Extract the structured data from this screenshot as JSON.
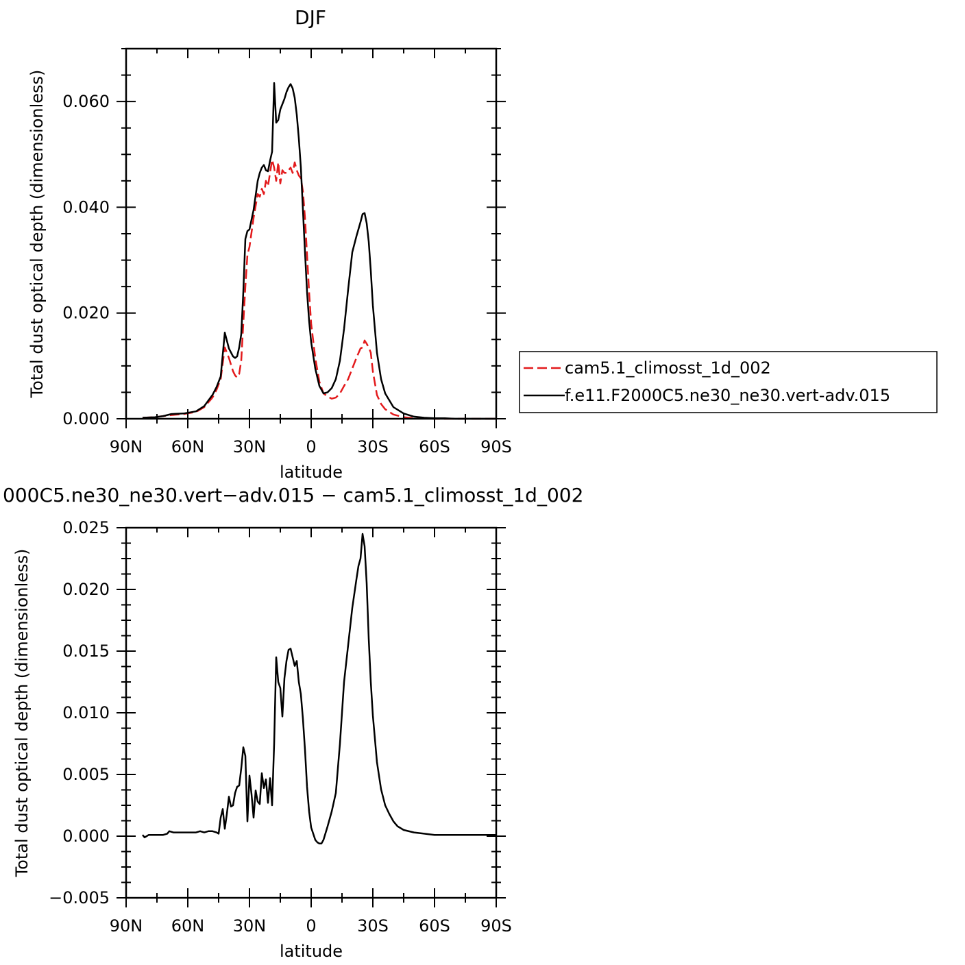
{
  "chart_data": [
    {
      "type": "line",
      "title": "DJF",
      "xlabel": "latitude",
      "ylabel": "Total dust optical depth (dimensionless)",
      "xlim": [
        90,
        -90
      ],
      "ylim": [
        0,
        0.07
      ],
      "xticks": [
        90,
        60,
        30,
        0,
        -30,
        -60,
        -90
      ],
      "xtick_labels": [
        "90N",
        "60N",
        "30N",
        "0",
        "30S",
        "60S",
        "90S"
      ],
      "yticks": [
        0,
        0.02,
        0.04,
        0.06
      ],
      "ytick_labels": [
        "0.000",
        "0.020",
        "0.040",
        "0.060"
      ],
      "grid": false,
      "legend": "right",
      "series": [
        {
          "name": "cam5.1_climosst_1d_002",
          "color": "#e31a1c",
          "dash": true,
          "x": [
            82,
            76,
            72,
            68,
            62,
            56,
            52,
            48,
            46,
            44,
            42,
            40,
            38,
            37,
            36,
            35,
            34,
            33,
            32,
            31,
            30,
            28,
            26,
            25,
            24,
            23,
            22,
            21,
            20,
            19,
            18,
            17,
            16,
            15,
            14,
            13,
            12,
            11,
            10,
            9,
            8,
            7,
            6,
            5,
            4,
            3,
            2,
            1,
            0,
            -2,
            -4,
            -6,
            -8,
            -10,
            -12,
            -14,
            -16,
            -18,
            -20,
            -22,
            -24,
            -25,
            -26,
            -27,
            -28,
            -29,
            -30,
            -32,
            -34,
            -36,
            -40,
            -45,
            -50,
            -55,
            -60,
            -65,
            -70,
            -75,
            -80,
            -85,
            -90
          ],
          "y": [
            0.0002,
            0.0003,
            0.0005,
            0.0007,
            0.0009,
            0.0013,
            0.0022,
            0.004,
            0.0055,
            0.0075,
            0.0135,
            0.0115,
            0.009,
            0.0082,
            0.0078,
            0.0085,
            0.011,
            0.018,
            0.025,
            0.031,
            0.0325,
            0.038,
            0.0425,
            0.042,
            0.0435,
            0.0425,
            0.045,
            0.044,
            0.0465,
            0.049,
            0.0475,
            0.045,
            0.0485,
            0.0445,
            0.047,
            0.0465,
            0.0465,
            0.047,
            0.0475,
            0.0465,
            0.0485,
            0.047,
            0.046,
            0.0455,
            0.043,
            0.038,
            0.031,
            0.024,
            0.018,
            0.0115,
            0.007,
            0.0048,
            0.0042,
            0.0038,
            0.004,
            0.0048,
            0.0062,
            0.0075,
            0.0095,
            0.0115,
            0.0133,
            0.0135,
            0.0148,
            0.0142,
            0.0135,
            0.0125,
            0.009,
            0.0045,
            0.0028,
            0.0018,
            0.0008,
            0.0003,
            0.0001,
            0.0001,
            0,
            0,
            0,
            0,
            0,
            0,
            0
          ]
        },
        {
          "name": "f.e11.F2000C5.ne30_ne30.vert-adv.015",
          "color": "#000000",
          "dash": false,
          "x": [
            82,
            76,
            72,
            68,
            62,
            56,
            52,
            48,
            46,
            44,
            42,
            40,
            38,
            37,
            36,
            35,
            34,
            33,
            32,
            31,
            30,
            28,
            26,
            25,
            24,
            23,
            22,
            21,
            20,
            19,
            18,
            17,
            16,
            15,
            14,
            13,
            12,
            11,
            10,
            9,
            8,
            7,
            6,
            5,
            4,
            3,
            2,
            1,
            0,
            -2,
            -4,
            -6,
            -8,
            -10,
            -12,
            -14,
            -16,
            -18,
            -20,
            -22,
            -24,
            -25,
            -26,
            -27,
            -28,
            -29,
            -30,
            -32,
            -34,
            -36,
            -40,
            -45,
            -50,
            -55,
            -60,
            -65,
            -70,
            -75,
            -80,
            -85,
            -90
          ],
          "y": [
            0.0002,
            0.0003,
            0.0005,
            0.0009,
            0.001,
            0.0014,
            0.0024,
            0.0045,
            0.006,
            0.008,
            0.0163,
            0.0133,
            0.0118,
            0.0115,
            0.0118,
            0.0135,
            0.016,
            0.024,
            0.034,
            0.0355,
            0.0358,
            0.0395,
            0.045,
            0.0465,
            0.0475,
            0.048,
            0.047,
            0.0468,
            0.0488,
            0.0505,
            0.0635,
            0.056,
            0.0565,
            0.0585,
            0.0595,
            0.0605,
            0.0618,
            0.0627,
            0.0633,
            0.0625,
            0.0607,
            0.0575,
            0.053,
            0.0475,
            0.0395,
            0.0315,
            0.024,
            0.0185,
            0.0145,
            0.0095,
            0.0062,
            0.0048,
            0.005,
            0.0058,
            0.0075,
            0.011,
            0.017,
            0.0245,
            0.0315,
            0.0345,
            0.0372,
            0.0387,
            0.0389,
            0.037,
            0.0335,
            0.028,
            0.0215,
            0.0125,
            0.0075,
            0.0048,
            0.0022,
            0.001,
            0.0004,
            0.0002,
            0.0001,
            0.0001,
            0,
            0,
            0,
            0,
            0
          ]
        }
      ]
    },
    {
      "type": "line",
      "title": "000C5.ne30_ne30.vert−adv.015 − cam5.1_climosst_1d_002",
      "xlabel": "latitude",
      "ylabel": "Total dust optical depth (dimensionless)",
      "xlim": [
        90,
        -90
      ],
      "ylim": [
        -0.005,
        0.025
      ],
      "xticks": [
        90,
        60,
        30,
        0,
        -30,
        -60,
        -90
      ],
      "xtick_labels": [
        "90N",
        "60N",
        "30N",
        "0",
        "30S",
        "60S",
        "90S"
      ],
      "yticks": [
        -0.005,
        0,
        0.005,
        0.01,
        0.015,
        0.02,
        0.025
      ],
      "ytick_labels": [
        "−0.005",
        "0.000",
        "0.005",
        "0.010",
        "0.015",
        "0.020",
        "0.025"
      ],
      "grid": false,
      "series": [
        {
          "color": "#000000",
          "dash": false,
          "x": [
            82,
            81,
            79,
            76,
            72,
            70,
            69,
            67,
            64,
            60,
            56,
            54,
            52,
            50,
            48,
            46,
            45,
            44,
            43,
            42,
            41,
            40,
            39,
            38,
            37,
            36,
            35,
            34,
            33,
            32,
            31,
            30,
            29,
            28,
            27,
            26,
            25,
            24,
            23,
            22,
            21,
            20,
            19,
            18,
            17,
            16,
            15,
            14,
            13,
            12,
            11,
            10,
            9,
            8,
            7,
            6,
            5,
            4,
            3,
            2,
            1,
            0,
            -2,
            -3,
            -4,
            -5,
            -6,
            -8,
            -10,
            -12,
            -14,
            -16,
            -18,
            -20,
            -22,
            -23,
            -24,
            -25,
            -26,
            -27,
            -28,
            -29,
            -30,
            -32,
            -34,
            -36,
            -38,
            -40,
            -42,
            -45,
            -50,
            -55,
            -60,
            -65,
            -70,
            -75,
            -80,
            -85,
            -90
          ],
          "y": [
            0.0001,
            -0.0001,
            0.0001,
            0.0001,
            0.0001,
            0.0002,
            0.0004,
            0.0003,
            0.0003,
            0.0003,
            0.0003,
            0.0004,
            0.0003,
            0.0004,
            0.0004,
            0.0003,
            0.0002,
            0.0015,
            0.0022,
            0.0006,
            0.0018,
            0.0032,
            0.0024,
            0.0025,
            0.0035,
            0.004,
            0.0041,
            0.0055,
            0.0072,
            0.0065,
            0.0012,
            0.0049,
            0.0034,
            0.0015,
            0.0037,
            0.0028,
            0.0026,
            0.0051,
            0.0039,
            0.0046,
            0.0027,
            0.0047,
            0.0025,
            0.0075,
            0.0145,
            0.0125,
            0.012,
            0.0097,
            0.0128,
            0.0142,
            0.0151,
            0.0152,
            0.0145,
            0.0138,
            0.0142,
            0.0125,
            0.0115,
            0.0095,
            0.007,
            0.004,
            0.002,
            0.0007,
            -0.0003,
            -0.0005,
            -0.0006,
            -0.0006,
            -0.0003,
            0.0008,
            0.002,
            0.0035,
            0.0075,
            0.0125,
            0.0155,
            0.0185,
            0.0208,
            0.0219,
            0.0225,
            0.0245,
            0.0235,
            0.0205,
            0.016,
            0.0125,
            0.0098,
            0.006,
            0.0038,
            0.0025,
            0.0018,
            0.0012,
            0.0008,
            0.0005,
            0.0003,
            0.0002,
            0.0001,
            0.0001,
            0.0001,
            0.0001,
            0.0001,
            0.0001,
            0.0001
          ]
        }
      ]
    }
  ]
}
